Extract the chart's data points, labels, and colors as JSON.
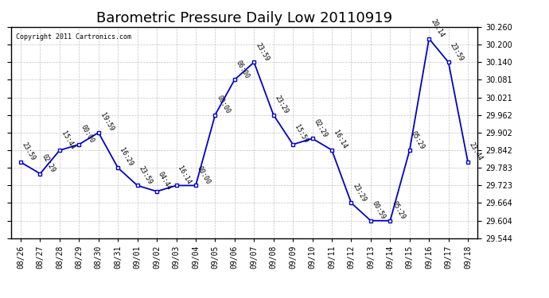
{
  "title": "Barometric Pressure Daily Low 20110919",
  "copyright": "Copyright 2011 Cartronics.com",
  "x_labels": [
    "08/26",
    "08/27",
    "08/28",
    "08/29",
    "08/30",
    "08/31",
    "09/01",
    "09/02",
    "09/03",
    "09/04",
    "09/05",
    "09/06",
    "09/07",
    "09/08",
    "09/09",
    "09/10",
    "09/11",
    "09/12",
    "09/13",
    "09/14",
    "09/15",
    "09/16",
    "09/17",
    "09/18"
  ],
  "y_values": [
    29.802,
    29.763,
    29.842,
    29.862,
    29.902,
    29.783,
    29.723,
    29.703,
    29.723,
    29.723,
    29.962,
    30.081,
    30.14,
    29.962,
    29.862,
    29.882,
    29.843,
    29.664,
    29.604,
    29.604,
    29.842,
    30.22,
    30.14,
    29.802
  ],
  "point_labels": [
    "23:59",
    "02:29",
    "15:44",
    "00:00",
    "19:59",
    "16:29",
    "23:59",
    "04:44",
    "16:14",
    "00:00",
    "00:00",
    "06:00",
    "23:59",
    "23:29",
    "15:59",
    "02:29",
    "16:14",
    "23:29",
    "00:59",
    "05:29",
    "05:29",
    "20:14",
    "23:59",
    "23:44"
  ],
  "ylim": [
    29.544,
    30.26
  ],
  "yticks": [
    29.544,
    29.604,
    29.664,
    29.723,
    29.783,
    29.842,
    29.902,
    29.962,
    30.021,
    30.081,
    30.14,
    30.2,
    30.26
  ],
  "line_color": "#0000CC",
  "marker_color": "#0000CC",
  "bg_color": "#FFFFFF",
  "grid_color": "#AAAAAA",
  "title_fontsize": 13,
  "tick_fontsize": 7,
  "anno_fontsize": 6
}
